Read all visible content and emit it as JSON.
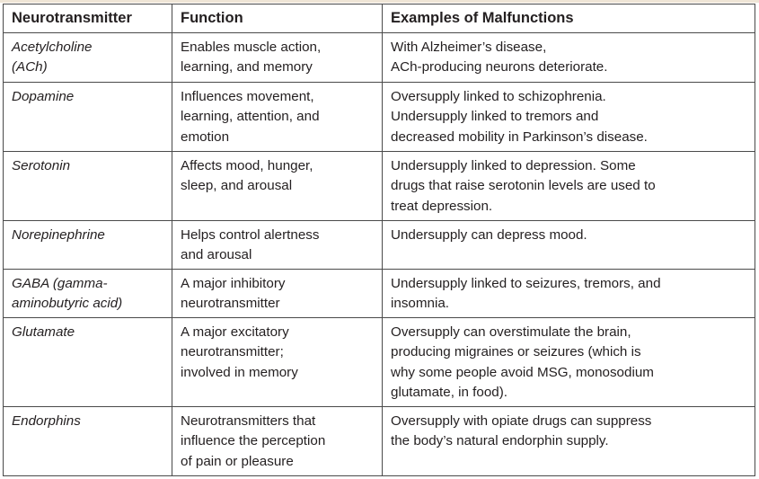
{
  "table": {
    "headers": [
      "Neurotransmitter",
      "Function",
      "Examples of Malfunctions"
    ],
    "rows": [
      {
        "name": [
          "Acetylcholine",
          "(ACh)"
        ],
        "function": [
          "Enables muscle action,",
          "learning, and memory"
        ],
        "malfunction": [
          "With Alzheimer’s disease,",
          "ACh-producing neurons deteriorate."
        ]
      },
      {
        "name": [
          "Dopamine"
        ],
        "function": [
          "Influences movement,",
          "learning, attention, and",
          "emotion"
        ],
        "malfunction": [
          "Oversupply linked to schizophrenia.",
          "Undersupply linked to tremors and",
          "decreased mobility in Parkinson’s disease."
        ]
      },
      {
        "name": [
          "Serotonin"
        ],
        "function": [
          "Affects mood, hunger,",
          "sleep, and arousal"
        ],
        "malfunction": [
          "Undersupply linked to depression. Some",
          "drugs that raise serotonin levels are used to",
          "treat depression."
        ]
      },
      {
        "name": [
          "Norepinephrine"
        ],
        "function": [
          "Helps control alertness",
          "and arousal"
        ],
        "malfunction": [
          "Undersupply can depress mood."
        ]
      },
      {
        "name": [
          "GABA (gamma-",
          "aminobutyric acid)"
        ],
        "function": [
          "A major inhibitory",
          "neurotransmitter"
        ],
        "malfunction": [
          "Undersupply linked to seizures, tremors, and",
          "insomnia."
        ]
      },
      {
        "name": [
          "Glutamate"
        ],
        "function": [
          "A major excitatory",
          "neurotransmitter;",
          "involved in memory"
        ],
        "malfunction": [
          "Oversupply can overstimulate the brain,",
          "producing migraines or seizures (which is",
          "why some people avoid MSG, monosodium",
          "glutamate, in food)."
        ]
      },
      {
        "name": [
          "Endorphins"
        ],
        "function": [
          "Neurotransmitters that",
          "influence the perception",
          "of pain or pleasure"
        ],
        "malfunction": [
          "Oversupply with opiate drugs can suppress",
          "the body’s natural endorphin supply."
        ]
      }
    ]
  }
}
